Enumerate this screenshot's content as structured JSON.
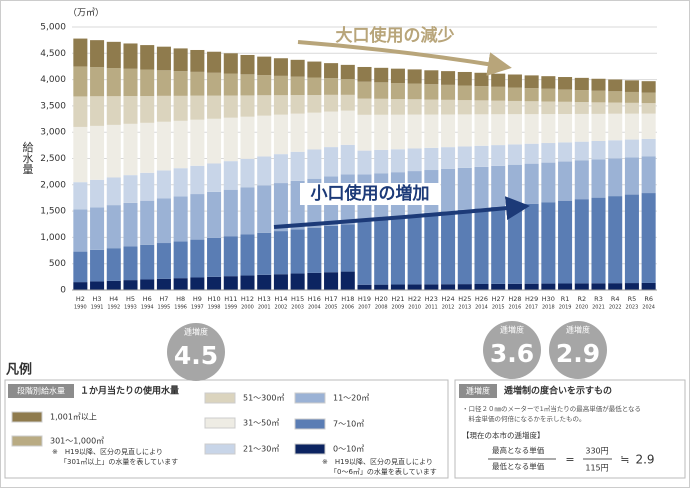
{
  "chart_data": {
    "type": "stacked-bar",
    "unit_label": "（万㎥）",
    "y_axis_title": "給水量",
    "categories": [
      "H2",
      "H3",
      "H4",
      "H5",
      "H6",
      "H7",
      "H8",
      "H9",
      "H10",
      "H11",
      "H12",
      "H13",
      "H14",
      "H15",
      "H16",
      "H17",
      "H18",
      "H19",
      "H20",
      "H21",
      "H22",
      "H23",
      "H24",
      "H25",
      "H26",
      "H27",
      "H28",
      "H29",
      "H30",
      "R1",
      "R2",
      "R3",
      "R4",
      "R5",
      "R6"
    ],
    "years": [
      "1990",
      "1991",
      "1992",
      "1993",
      "1994",
      "1995",
      "1996",
      "1997",
      "1998",
      "1999",
      "2000",
      "2001",
      "2002",
      "2003",
      "2004",
      "2005",
      "2006",
      "2007",
      "2008",
      "2009",
      "2010",
      "2011",
      "2012",
      "2013",
      "2014",
      "2015",
      "2016",
      "2017",
      "2018",
      "2019",
      "2020",
      "2021",
      "2022",
      "2023",
      "2024"
    ],
    "ylim": [
      0,
      5000
    ],
    "yticks": [
      0,
      500,
      {
        "value": 1000,
        "label": "1,000"
      },
      {
        "value": 1500,
        "label": "1,500"
      },
      {
        "value": 2000,
        "label": "2,000"
      },
      {
        "value": 2500,
        "label": "2,500"
      },
      {
        "value": 3000,
        "label": "3,000"
      },
      {
        "value": 3500,
        "label": "3,500"
      },
      {
        "value": 4000,
        "label": "4,000"
      },
      {
        "value": 4500,
        "label": "4,500"
      },
      {
        "value": 5000,
        "label": "5,000"
      }
    ],
    "series": [
      {
        "name": "0～10㎥",
        "color": "#0c2461",
        "values": [
          150,
          163,
          175,
          188,
          200,
          213,
          225,
          238,
          250,
          263,
          275,
          288,
          300,
          313,
          325,
          338,
          350,
          100,
          102,
          104,
          106,
          108,
          110,
          112,
          114,
          116,
          118,
          120,
          122,
          124,
          126,
          128,
          130,
          132,
          134
        ]
      },
      {
        "name": "7～10㎥",
        "color": "#5a7db4",
        "values": [
          580,
          600,
          620,
          640,
          660,
          680,
          700,
          720,
          740,
          760,
          780,
          800,
          820,
          840,
          860,
          880,
          900,
          1250,
          1277,
          1304,
          1331,
          1358,
          1385,
          1412,
          1439,
          1466,
          1493,
          1520,
          1547,
          1574,
          1601,
          1628,
          1655,
          1682,
          1709
        ]
      },
      {
        "name": "11～20㎥",
        "color": "#9bb2d5",
        "values": [
          800,
          809,
          819,
          828,
          838,
          847,
          856,
          866,
          875,
          884,
          894,
          903,
          913,
          922,
          931,
          941,
          950,
          850,
          841,
          832,
          824,
          815,
          806,
          797,
          788,
          779,
          771,
          762,
          753,
          744,
          735,
          726,
          718,
          709,
          700
        ]
      },
      {
        "name": "21～30㎥",
        "color": "#c8d5e8",
        "values": [
          520,
          523,
          525,
          528,
          530,
          533,
          535,
          538,
          540,
          543,
          545,
          548,
          550,
          553,
          555,
          558,
          560,
          450,
          443,
          436,
          429,
          422,
          415,
          408,
          401,
          394,
          386,
          379,
          372,
          365,
          358,
          351,
          344,
          337,
          330
        ]
      },
      {
        "name": "31～50㎥",
        "color": "#eeece4",
        "values": [
          1050,
          1025,
          1000,
          975,
          950,
          925,
          900,
          875,
          850,
          825,
          800,
          775,
          750,
          725,
          700,
          675,
          650,
          680,
          668,
          656,
          645,
          633,
          621,
          609,
          598,
          586,
          574,
          562,
          551,
          539,
          527,
          515,
          504,
          492,
          480
        ]
      },
      {
        "name": "51～300㎥",
        "color": "#dbd4be",
        "values": [
          580,
          563,
          545,
          528,
          510,
          493,
          475,
          458,
          440,
          423,
          405,
          388,
          370,
          353,
          335,
          318,
          300,
          310,
          304,
          297,
          291,
          284,
          278,
          271,
          265,
          258,
          252,
          245,
          239,
          232,
          226,
          219,
          213,
          206,
          200
        ]
      },
      {
        "name": "301～1,000㎥",
        "color": "#b9ab83",
        "values": [
          570,
          553,
          536,
          519,
          503,
          486,
          469,
          452,
          435,
          418,
          401,
          384,
          368,
          351,
          334,
          317,
          300,
          320,
          313,
          306,
          299,
          292,
          285,
          278,
          271,
          264,
          256,
          249,
          242,
          235,
          228,
          221,
          214,
          207,
          200
        ]
      },
      {
        "name": "1,001㎥以上",
        "color": "#8f7b4d",
        "values": [
          530,
          514,
          498,
          481,
          465,
          449,
          433,
          416,
          400,
          384,
          368,
          351,
          335,
          319,
          303,
          286,
          270,
          280,
          276,
          273,
          269,
          265,
          261,
          258,
          254,
          250,
          247,
          243,
          239,
          236,
          232,
          228,
          224,
          221,
          217
        ]
      }
    ],
    "annotations": [
      "大口使用の減少",
      "小口使用の増加"
    ],
    "badges": [
      {
        "label": "逓増度",
        "value": 4.5
      },
      {
        "label": "逓増度",
        "value": 3.6
      },
      {
        "label": "逓増度",
        "value": 2.9
      }
    ]
  },
  "legend_panel": {
    "title": "凡例",
    "tag": "段階別給水量",
    "heading": "１か月当たりの使用水量",
    "notes": [
      "※　H19以降、区分の見直しにより",
      "「301㎥以上」の水量を表しています",
      "※　H19以降、区分の見直しにより",
      "「0～6㎥」の水量を表しています"
    ]
  },
  "info_panel": {
    "tag": "逓増度",
    "heading": "逓増制の度合いを示すもの",
    "note": [
      "・口径２０㎜のメーターで1㎥当たりの最高単価が最低となる",
      "　料金単価の何倍になるかを示したもの。"
    ],
    "bracket": "【現在の本市の逓増度】",
    "numerator_label": "最高となる単価",
    "denominator_label": "最低となる単価",
    "equals": "=",
    "numerator": "330円",
    "denominator": "115円",
    "approx": "≒",
    "result": "2.9"
  }
}
